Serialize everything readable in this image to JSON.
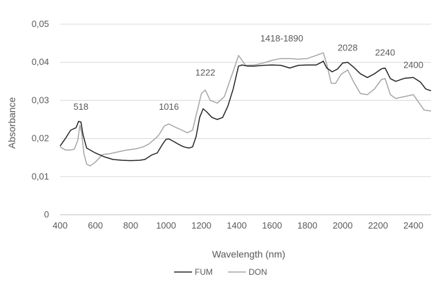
{
  "chart_data": {
    "type": "line",
    "title": "",
    "xlabel": "Wavelength (nm)",
    "ylabel": "Absorbance",
    "xlim": [
      400,
      2500
    ],
    "ylim": [
      0,
      0.05
    ],
    "x_ticks": [
      400,
      600,
      800,
      1000,
      1200,
      1400,
      1600,
      1800,
      2000,
      2200,
      2400
    ],
    "y_ticks": [
      0,
      0.01,
      0.02,
      0.03,
      0.04,
      0.05
    ],
    "y_tick_labels": [
      "0",
      "0,01",
      "0,02",
      "0,03",
      "0,04",
      "0,05"
    ],
    "grid": "horizontal",
    "legend_position": "bottom",
    "series": [
      {
        "name": "FUM",
        "color": "#262626",
        "points": [
          [
            400,
            0.018
          ],
          [
            430,
            0.02
          ],
          [
            460,
            0.0222
          ],
          [
            490,
            0.0228
          ],
          [
            505,
            0.0245
          ],
          [
            518,
            0.0243
          ],
          [
            530,
            0.021
          ],
          [
            550,
            0.0175
          ],
          [
            600,
            0.0162
          ],
          [
            650,
            0.0152
          ],
          [
            700,
            0.0145
          ],
          [
            750,
            0.0143
          ],
          [
            800,
            0.0142
          ],
          [
            850,
            0.0143
          ],
          [
            880,
            0.0145
          ],
          [
            920,
            0.0157
          ],
          [
            950,
            0.0162
          ],
          [
            980,
            0.0185
          ],
          [
            1000,
            0.0198
          ],
          [
            1016,
            0.0199
          ],
          [
            1040,
            0.0193
          ],
          [
            1070,
            0.0185
          ],
          [
            1100,
            0.0178
          ],
          [
            1130,
            0.0175
          ],
          [
            1150,
            0.0178
          ],
          [
            1170,
            0.0205
          ],
          [
            1190,
            0.0255
          ],
          [
            1210,
            0.0278
          ],
          [
            1230,
            0.027
          ],
          [
            1260,
            0.0255
          ],
          [
            1290,
            0.025
          ],
          [
            1320,
            0.0255
          ],
          [
            1350,
            0.0285
          ],
          [
            1380,
            0.033
          ],
          [
            1410,
            0.039
          ],
          [
            1430,
            0.0393
          ],
          [
            1460,
            0.039
          ],
          [
            1500,
            0.039
          ],
          [
            1550,
            0.0392
          ],
          [
            1600,
            0.0393
          ],
          [
            1650,
            0.0392
          ],
          [
            1700,
            0.0385
          ],
          [
            1750,
            0.0392
          ],
          [
            1800,
            0.0393
          ],
          [
            1850,
            0.0393
          ],
          [
            1880,
            0.04
          ],
          [
            1890,
            0.0403
          ],
          [
            1910,
            0.0385
          ],
          [
            1940,
            0.0375
          ],
          [
            1970,
            0.0382
          ],
          [
            2000,
            0.0398
          ],
          [
            2028,
            0.04
          ],
          [
            2060,
            0.0388
          ],
          [
            2100,
            0.037
          ],
          [
            2140,
            0.036
          ],
          [
            2180,
            0.037
          ],
          [
            2220,
            0.0383
          ],
          [
            2240,
            0.0385
          ],
          [
            2270,
            0.0357
          ],
          [
            2300,
            0.035
          ],
          [
            2350,
            0.0358
          ],
          [
            2400,
            0.036
          ],
          [
            2440,
            0.0348
          ],
          [
            2470,
            0.033
          ],
          [
            2500,
            0.0325
          ]
        ]
      },
      {
        "name": "DON",
        "color": "#a6a6a6",
        "points": [
          [
            400,
            0.0178
          ],
          [
            430,
            0.017
          ],
          [
            460,
            0.017
          ],
          [
            480,
            0.0172
          ],
          [
            500,
            0.0195
          ],
          [
            512,
            0.0235
          ],
          [
            522,
            0.0215
          ],
          [
            535,
            0.016
          ],
          [
            550,
            0.0133
          ],
          [
            570,
            0.0128
          ],
          [
            600,
            0.0138
          ],
          [
            640,
            0.0158
          ],
          [
            680,
            0.016
          ],
          [
            730,
            0.0165
          ],
          [
            780,
            0.017
          ],
          [
            830,
            0.0173
          ],
          [
            870,
            0.0178
          ],
          [
            900,
            0.0185
          ],
          [
            940,
            0.02
          ],
          [
            960,
            0.021
          ],
          [
            990,
            0.0233
          ],
          [
            1016,
            0.0238
          ],
          [
            1050,
            0.023
          ],
          [
            1090,
            0.0222
          ],
          [
            1120,
            0.0215
          ],
          [
            1150,
            0.0222
          ],
          [
            1180,
            0.028
          ],
          [
            1200,
            0.0318
          ],
          [
            1222,
            0.0327
          ],
          [
            1250,
            0.03
          ],
          [
            1290,
            0.0293
          ],
          [
            1330,
            0.031
          ],
          [
            1360,
            0.035
          ],
          [
            1390,
            0.039
          ],
          [
            1410,
            0.0418
          ],
          [
            1430,
            0.0405
          ],
          [
            1450,
            0.0392
          ],
          [
            1500,
            0.0393
          ],
          [
            1550,
            0.0398
          ],
          [
            1600,
            0.0405
          ],
          [
            1650,
            0.041
          ],
          [
            1700,
            0.041
          ],
          [
            1750,
            0.0408
          ],
          [
            1800,
            0.041
          ],
          [
            1850,
            0.0418
          ],
          [
            1890,
            0.0425
          ],
          [
            1910,
            0.0395
          ],
          [
            1935,
            0.0345
          ],
          [
            1960,
            0.0345
          ],
          [
            1990,
            0.0368
          ],
          [
            2028,
            0.038
          ],
          [
            2060,
            0.035
          ],
          [
            2100,
            0.0318
          ],
          [
            2140,
            0.0315
          ],
          [
            2180,
            0.033
          ],
          [
            2220,
            0.0355
          ],
          [
            2240,
            0.0357
          ],
          [
            2270,
            0.0315
          ],
          [
            2300,
            0.0305
          ],
          [
            2350,
            0.031
          ],
          [
            2400,
            0.0315
          ],
          [
            2430,
            0.0295
          ],
          [
            2460,
            0.0275
          ],
          [
            2500,
            0.0272
          ]
        ]
      }
    ],
    "annotations": [
      {
        "text": "518",
        "x": 518,
        "y": 0.0275
      },
      {
        "text": "1016",
        "x": 1016,
        "y": 0.0275
      },
      {
        "text": "1222",
        "x": 1222,
        "y": 0.0365
      },
      {
        "text": "1418-1890",
        "x": 1655,
        "y": 0.0455
      },
      {
        "text": "2028",
        "x": 2028,
        "y": 0.043
      },
      {
        "text": "2240",
        "x": 2240,
        "y": 0.0418
      },
      {
        "text": "2400",
        "x": 2400,
        "y": 0.0385
      }
    ]
  }
}
